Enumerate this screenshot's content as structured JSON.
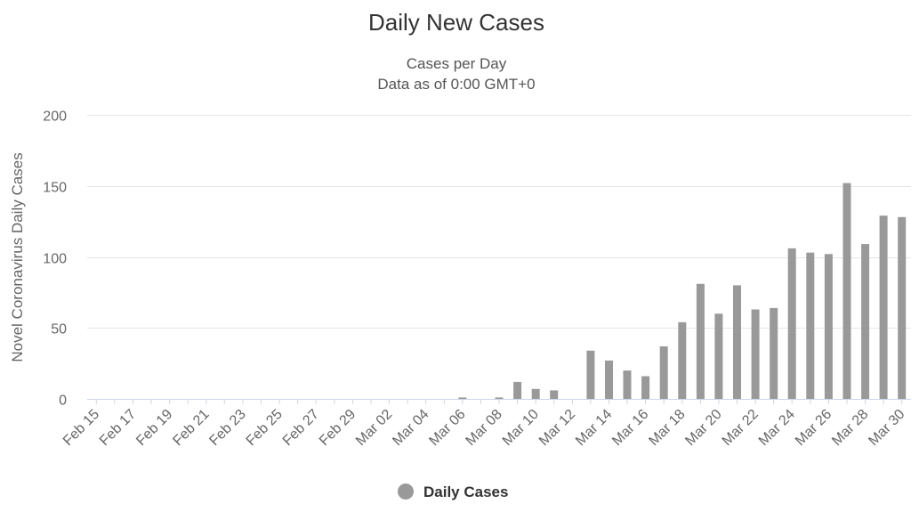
{
  "chart_data": {
    "type": "bar",
    "title": "Daily New Cases",
    "subtitle": [
      "Cases per Day",
      "Data as of 0:00 GMT+0"
    ],
    "ylabel": "Novel Coronavirus Daily Cases",
    "xlabel": "",
    "ylim": [
      0,
      200
    ],
    "yticks": [
      0,
      50,
      100,
      150,
      200
    ],
    "grid": true,
    "legend_position": "bottom-center",
    "color": "#999999",
    "categories": [
      "Feb 15",
      "Feb 16",
      "Feb 17",
      "Feb 18",
      "Feb 19",
      "Feb 20",
      "Feb 21",
      "Feb 22",
      "Feb 23",
      "Feb 24",
      "Feb 25",
      "Feb 26",
      "Feb 27",
      "Feb 28",
      "Feb 29",
      "Mar 01",
      "Mar 02",
      "Mar 03",
      "Mar 04",
      "Mar 05",
      "Mar 06",
      "Mar 07",
      "Mar 08",
      "Mar 09",
      "Mar 10",
      "Mar 11",
      "Mar 12",
      "Mar 13",
      "Mar 14",
      "Mar 15",
      "Mar 16",
      "Mar 17",
      "Mar 18",
      "Mar 19",
      "Mar 20",
      "Mar 21",
      "Mar 22",
      "Mar 23",
      "Mar 24",
      "Mar 25",
      "Mar 26",
      "Mar 27",
      "Mar 28",
      "Mar 29",
      "Mar 30"
    ],
    "xtick_labels": [
      "Feb 15",
      "Feb 17",
      "Feb 19",
      "Feb 21",
      "Feb 23",
      "Feb 25",
      "Feb 27",
      "Feb 29",
      "Mar 02",
      "Mar 04",
      "Mar 06",
      "Mar 08",
      "Mar 10",
      "Mar 12",
      "Mar 14",
      "Mar 16",
      "Mar 18",
      "Mar 20",
      "Mar 22",
      "Mar 24",
      "Mar 26",
      "Mar 28",
      "Mar 30"
    ],
    "series": [
      {
        "name": "Daily Cases",
        "values": [
          0,
          0,
          0,
          0,
          0,
          0,
          0,
          0,
          0,
          0,
          0,
          0,
          0,
          0,
          0,
          0,
          0,
          0,
          0,
          0,
          1,
          0,
          1,
          12,
          7,
          6,
          0,
          34,
          27,
          20,
          16,
          37,
          54,
          81,
          60,
          80,
          63,
          64,
          106,
          103,
          102,
          152,
          109,
          129,
          128
        ]
      }
    ]
  }
}
